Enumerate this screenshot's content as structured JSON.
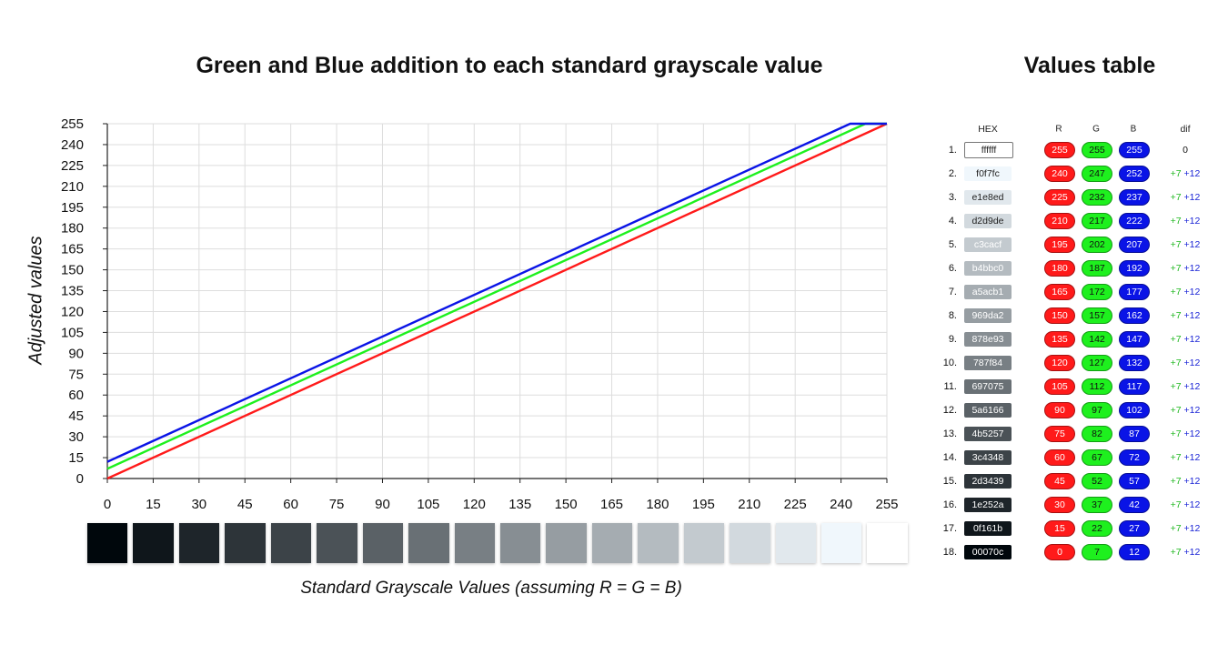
{
  "chart_title": "Green and Blue addition to each standard grayscale value",
  "table_title": "Values table",
  "colors": {
    "red": "#ff1a1a",
    "green": "#1ef01e",
    "blue": "#0a14e6",
    "grid": "#dddddd",
    "axis": "#222222"
  },
  "chart_data": {
    "type": "line",
    "xlabel": "Standard Grayscale Values (assuming R = G = B)",
    "ylabel": "Adjusted values",
    "xlim": [
      0,
      255
    ],
    "ylim": [
      0,
      255
    ],
    "x_ticks": [
      0,
      15,
      30,
      45,
      60,
      75,
      90,
      105,
      120,
      135,
      150,
      165,
      180,
      195,
      210,
      225,
      240,
      255
    ],
    "y_ticks": [
      0,
      15,
      30,
      45,
      60,
      75,
      90,
      105,
      120,
      135,
      150,
      165,
      180,
      195,
      210,
      225,
      240,
      255
    ],
    "grid": true,
    "series": [
      {
        "color": "#ff1a1a",
        "x": [
          0,
          255
        ],
        "y": [
          0,
          255
        ]
      },
      {
        "color": "#1ef01e",
        "x": [
          0,
          248,
          255
        ],
        "y": [
          7,
          255,
          255
        ]
      },
      {
        "color": "#0a14e6",
        "x": [
          0,
          243,
          255
        ],
        "y": [
          12,
          255,
          255
        ]
      }
    ],
    "swatches": [
      "#00070c",
      "#0f161b",
      "#1e252a",
      "#2d3439",
      "#3c4348",
      "#4b5257",
      "#5a6166",
      "#697075",
      "#787f84",
      "#878e93",
      "#969da2",
      "#a5acb1",
      "#b4bbc0",
      "#c3cacf",
      "#d2d9de",
      "#e1e8ed",
      "#f0f7fc",
      "#ffffff"
    ]
  },
  "table": {
    "headers": {
      "hex": "HEX",
      "r": "R",
      "g": "G",
      "b": "B",
      "dif": "dif"
    },
    "rows": [
      {
        "num": "1.",
        "hex": "ffffff",
        "r": "255",
        "g": "255",
        "b": "255",
        "dif": "0"
      },
      {
        "num": "2.",
        "hex": "f0f7fc",
        "r": "240",
        "g": "247",
        "b": "252",
        "dif_g": "+7",
        "dif_b": "+12"
      },
      {
        "num": "3.",
        "hex": "e1e8ed",
        "r": "225",
        "g": "232",
        "b": "237",
        "dif_g": "+7",
        "dif_b": "+12"
      },
      {
        "num": "4.",
        "hex": "d2d9de",
        "r": "210",
        "g": "217",
        "b": "222",
        "dif_g": "+7",
        "dif_b": "+12"
      },
      {
        "num": "5.",
        "hex": "c3cacf",
        "r": "195",
        "g": "202",
        "b": "207",
        "dif_g": "+7",
        "dif_b": "+12"
      },
      {
        "num": "6.",
        "hex": "b4bbc0",
        "r": "180",
        "g": "187",
        "b": "192",
        "dif_g": "+7",
        "dif_b": "+12"
      },
      {
        "num": "7.",
        "hex": "a5acb1",
        "r": "165",
        "g": "172",
        "b": "177",
        "dif_g": "+7",
        "dif_b": "+12"
      },
      {
        "num": "8.",
        "hex": "969da2",
        "r": "150",
        "g": "157",
        "b": "162",
        "dif_g": "+7",
        "dif_b": "+12"
      },
      {
        "num": "9.",
        "hex": "878e93",
        "r": "135",
        "g": "142",
        "b": "147",
        "dif_g": "+7",
        "dif_b": "+12"
      },
      {
        "num": "10.",
        "hex": "787f84",
        "r": "120",
        "g": "127",
        "b": "132",
        "dif_g": "+7",
        "dif_b": "+12"
      },
      {
        "num": "11.",
        "hex": "697075",
        "r": "105",
        "g": "112",
        "b": "117",
        "dif_g": "+7",
        "dif_b": "+12"
      },
      {
        "num": "12.",
        "hex": "5a6166",
        "r": "90",
        "g": "97",
        "b": "102",
        "dif_g": "+7",
        "dif_b": "+12"
      },
      {
        "num": "13.",
        "hex": "4b5257",
        "r": "75",
        "g": "82",
        "b": "87",
        "dif_g": "+7",
        "dif_b": "+12"
      },
      {
        "num": "14.",
        "hex": "3c4348",
        "r": "60",
        "g": "67",
        "b": "72",
        "dif_g": "+7",
        "dif_b": "+12"
      },
      {
        "num": "15.",
        "hex": "2d3439",
        "r": "45",
        "g": "52",
        "b": "57",
        "dif_g": "+7",
        "dif_b": "+12"
      },
      {
        "num": "16.",
        "hex": "1e252a",
        "r": "30",
        "g": "37",
        "b": "42",
        "dif_g": "+7",
        "dif_b": "+12"
      },
      {
        "num": "17.",
        "hex": "0f161b",
        "r": "15",
        "g": "22",
        "b": "27",
        "dif_g": "+7",
        "dif_b": "+12"
      },
      {
        "num": "18.",
        "hex": "00070c",
        "r": "0",
        "g": "7",
        "b": "12",
        "dif_g": "+7",
        "dif_b": "+12"
      }
    ]
  }
}
